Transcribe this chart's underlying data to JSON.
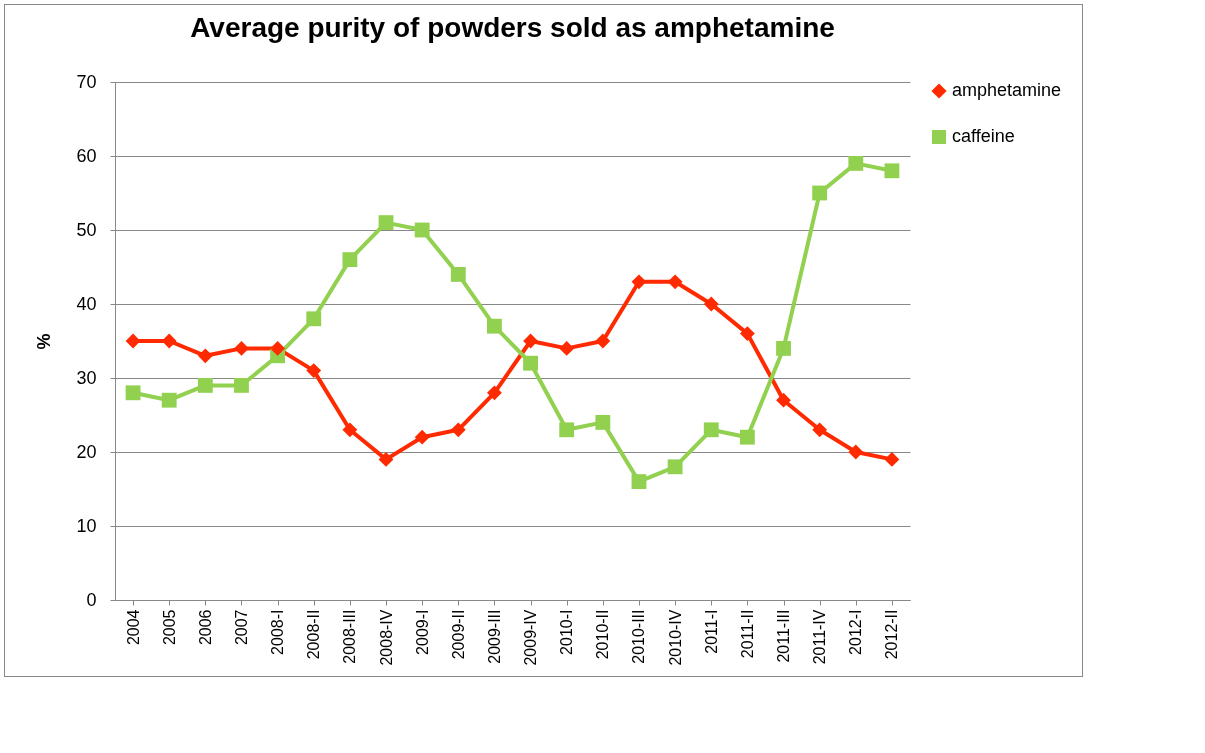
{
  "chart_data": {
    "type": "line",
    "title": "Average purity of powders sold as amphetamine",
    "ylabel": "%",
    "categories": [
      "2004",
      "2005",
      "2006",
      "2007",
      "2008-I",
      "2008-II",
      "2008-III",
      "2008-IV",
      "2009-I",
      "2009-II",
      "2009-III",
      "2009-IV",
      "2010-I",
      "2010-II",
      "2010-III",
      "2010-IV",
      "2011-I",
      "2011-II",
      "2011-III",
      "2011-IV",
      "2012-I",
      "2012-II"
    ],
    "series": [
      {
        "name": "amphetamine",
        "color": "#ff2a00",
        "marker": "diamond",
        "values": [
          35,
          35,
          33,
          34,
          34,
          31,
          23,
          19,
          22,
          23,
          28,
          35,
          34,
          35,
          43,
          43,
          40,
          36,
          27,
          23,
          20,
          19
        ]
      },
      {
        "name": "caffeine",
        "color": "#92d050",
        "marker": "square",
        "values": [
          28,
          27,
          29,
          29,
          33,
          38,
          46,
          51,
          50,
          44,
          37,
          32,
          23,
          24,
          16,
          18,
          23,
          22,
          34,
          55,
          59,
          58
        ]
      }
    ],
    "ylim": [
      0,
      70
    ],
    "yticks": [
      0,
      10,
      20,
      30,
      40,
      50,
      60,
      70
    ],
    "grid": "y",
    "legend": "right"
  }
}
